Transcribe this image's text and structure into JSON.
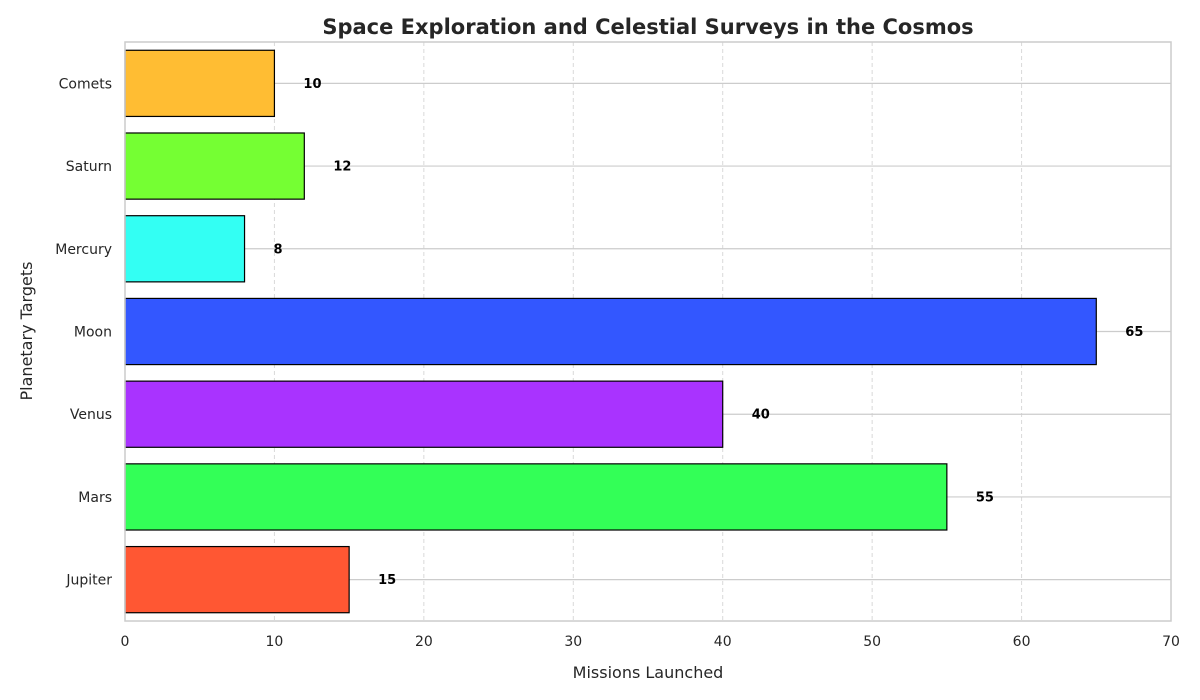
{
  "chart_data": {
    "type": "bar",
    "orientation": "horizontal",
    "title": "Space Exploration and Celestial Surveys in the Cosmos",
    "xlabel": "Missions Launched",
    "ylabel": "Planetary Targets",
    "categories": [
      "Jupiter",
      "Mars",
      "Venus",
      "Moon",
      "Mercury",
      "Saturn",
      "Comets"
    ],
    "values": [
      15,
      55,
      40,
      65,
      8,
      12,
      10
    ],
    "colors": [
      "#ff5733",
      "#33ff57",
      "#a933ff",
      "#3357ff",
      "#33fff3",
      "#75ff33",
      "#ffbd33"
    ],
    "xlim": [
      0,
      70
    ],
    "xticks": [
      0,
      10,
      20,
      30,
      40,
      50,
      60,
      70
    ],
    "data_labels": true,
    "grid": true,
    "legend": "none"
  }
}
